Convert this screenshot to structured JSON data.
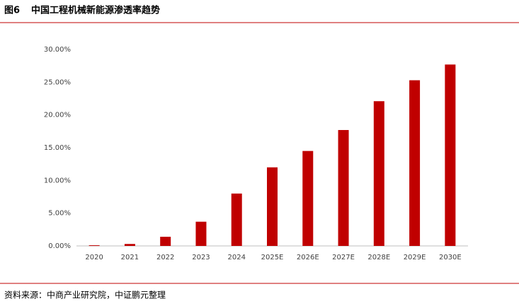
{
  "chart_data": {
    "type": "bar",
    "figure_label": "图6",
    "title": "中国工程机械新能源渗透率趋势",
    "source": "资料来源：中商产业研究院，中证鹏元整理",
    "categories": [
      "2020",
      "2021",
      "2022",
      "2023",
      "2024",
      "2025E",
      "2026E",
      "2027E",
      "2028E",
      "2029E",
      "2030E"
    ],
    "values": [
      0.1,
      0.3,
      1.4,
      3.7,
      8.0,
      12.0,
      14.5,
      17.7,
      22.1,
      25.3,
      27.7
    ],
    "color": "#c00000",
    "ylim": [
      0,
      30
    ],
    "yticks": [
      {
        "value": 0,
        "label": "0.00%"
      },
      {
        "value": 5,
        "label": "5.00%"
      },
      {
        "value": 10,
        "label": "10.00%"
      },
      {
        "value": 15,
        "label": "15.00%"
      },
      {
        "value": 20,
        "label": "20.00%"
      },
      {
        "value": 25,
        "label": "25.00%"
      },
      {
        "value": 30,
        "label": "30.00%"
      }
    ],
    "grid": false
  }
}
